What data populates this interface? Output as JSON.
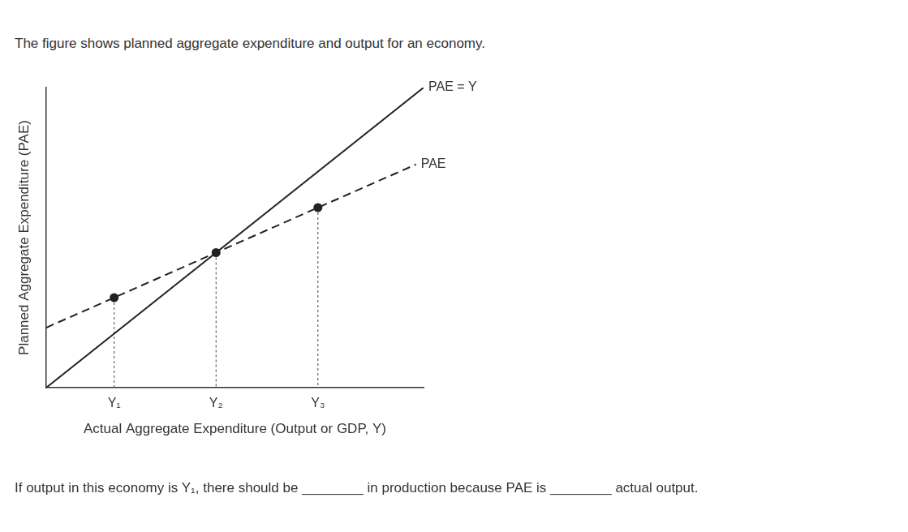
{
  "chart_data": {
    "type": "line",
    "title": "The figure shows planned aggregate expenditure and output for an economy.",
    "x_label": "Actual Aggregate Expenditure (Output or GDP, Y)",
    "y_label": "Planned Aggregate Expenditure (PAE)",
    "annotations": [
      "If output in this economy is Y₁, there should be ________ in production because PAE is ________ actual output."
    ],
    "series": [
      {
        "name": "PAE = Y",
        "color": "#222222",
        "line_style": "solid",
        "x": [
          0,
          100
        ],
        "values": [
          0,
          100
        ]
      },
      {
        "name": "PAE",
        "color": "#222222",
        "line_style": "dashed",
        "marker": "circle",
        "x": [
          0,
          18,
          45,
          72,
          98
        ],
        "values": [
          20,
          30,
          45,
          60,
          74.4
        ]
      }
    ],
    "xlim": [
      0,
      100
    ],
    "ylim": [
      0,
      100
    ],
    "xticks": [
      {
        "value": 18,
        "label": "Y₁"
      },
      {
        "value": 45,
        "label": "Y₂"
      },
      {
        "value": 72,
        "label": "Y₃"
      }
    ],
    "yticks": [],
    "tick_labels": "x",
    "grid": false
  }
}
